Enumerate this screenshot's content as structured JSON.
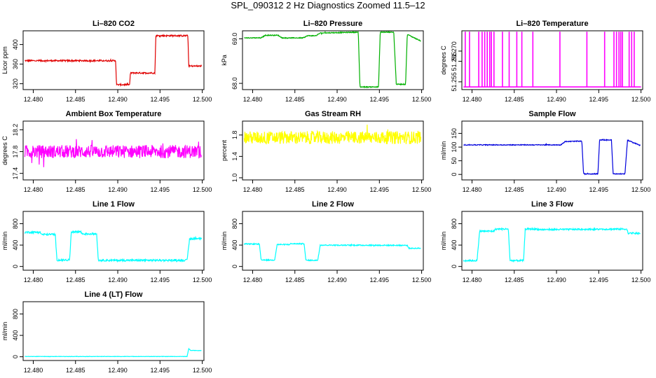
{
  "figure": {
    "title": "SPL_090312  2 Hz Diagnostics Zoomed 11.5–12"
  },
  "chart_data": [
    {
      "type": "line",
      "title": "Li–820 CO2",
      "xlabel": "",
      "ylabel": "Licor ppm",
      "color": "#e00000",
      "xlim": [
        12.4788,
        12.5002
      ],
      "ylim": [
        308,
        428
      ],
      "xticks": [
        "12.480",
        "12.485",
        "12.490",
        "12.495",
        "12.500"
      ],
      "yticks": [
        "320",
        "360",
        "400"
      ],
      "noise": 1.5,
      "series": [
        {
          "x": [
            12.479,
            12.48975,
            12.48985,
            12.4914,
            12.4915,
            12.4944,
            12.4945,
            12.4983,
            12.4984,
            12.4999
          ],
          "y": [
            367,
            367,
            318,
            318,
            342,
            342,
            418,
            418,
            356,
            356
          ]
        }
      ]
    },
    {
      "type": "line",
      "title": "Li–820 Pressure",
      "xlabel": "",
      "ylabel": "kPa",
      "color": "#00b000",
      "xlim": [
        12.4788,
        12.5002
      ],
      "ylim": [
        67.86,
        69.18
      ],
      "xticks": [
        "12.480",
        "12.485",
        "12.490",
        "12.495",
        "12.500"
      ],
      "yticks": [
        "68.0",
        "69.0"
      ],
      "noise": 0.01,
      "series": [
        {
          "x": [
            12.479,
            12.481,
            12.4815,
            12.483,
            12.4835,
            12.486,
            12.4865,
            12.4875,
            12.488,
            12.4925,
            12.4927,
            12.4949,
            12.4951,
            12.4967,
            12.497,
            12.4981,
            12.4983,
            12.4999
          ],
          "y": [
            69.02,
            69.02,
            69.08,
            69.08,
            69.02,
            69.02,
            69.07,
            69.07,
            69.13,
            69.15,
            67.92,
            67.92,
            69.15,
            69.15,
            67.98,
            67.98,
            69.1,
            68.95
          ]
        }
      ]
    },
    {
      "type": "line",
      "title": "Li–820 Temperature",
      "xlabel": "",
      "ylabel": "degrees C",
      "color": "#ff00ff",
      "xlim": [
        12.4788,
        12.5002
      ],
      "ylim": [
        51.2512,
        51.2799
      ],
      "xticks": [
        "12.480",
        "12.485",
        "12.490",
        "12.495",
        "12.500"
      ],
      "yticks": [
        "51.255",
        "51.265",
        "51.270"
      ],
      "base": 51.2525,
      "high": 51.2795,
      "spikes": [
        12.4792,
        12.4797,
        12.4808,
        12.4812,
        12.4815,
        12.4818,
        12.4821,
        12.4823,
        12.4826,
        12.4836,
        12.4844,
        12.4853,
        12.4859,
        12.4872,
        12.4904,
        12.4936,
        12.4957,
        12.4968,
        12.4971,
        12.4974,
        12.4976,
        12.4978,
        12.4986,
        12.4989,
        12.4992
      ]
    },
    {
      "type": "line",
      "title": "Ambient Box Temperature",
      "xlabel": "",
      "ylabel": "degrees C",
      "color": "#ff00ff",
      "xlim": [
        12.4788,
        12.5002
      ],
      "ylim": [
        17.28,
        18.36
      ],
      "xticks": [
        "12.480",
        "12.485",
        "12.490",
        "12.495",
        "12.500"
      ],
      "yticks": [
        "17.4",
        "17.8",
        "18.2"
      ],
      "noise": 0.12,
      "series": [
        {
          "x": [
            12.479,
            12.4999
          ],
          "y": [
            17.8,
            17.8
          ]
        }
      ]
    },
    {
      "type": "line",
      "title": "Gas Stream RH",
      "xlabel": "",
      "ylabel": "percent",
      "color": "#ffff00",
      "xlim": [
        12.4788,
        12.5002
      ],
      "ylim": [
        0.96,
        2.06
      ],
      "xticks": [
        "12.480",
        "12.485",
        "12.490",
        "12.495",
        "12.500"
      ],
      "yticks": [
        "1.0",
        "1.4",
        "1.8"
      ],
      "noise": 0.12,
      "series": [
        {
          "x": [
            12.479,
            12.4999
          ],
          "y": [
            1.75,
            1.75
          ]
        }
      ]
    },
    {
      "type": "line",
      "title": "Sample Flow",
      "xlabel": "",
      "ylabel": "ml/min",
      "color": "#0000dd",
      "xlim": [
        12.4788,
        12.5002
      ],
      "ylim": [
        -20,
        195
      ],
      "xticks": [
        "12.480",
        "12.485",
        "12.490",
        "12.495",
        "12.500"
      ],
      "yticks": [
        "0",
        "50",
        "100",
        "150"
      ],
      "noise": 1.5,
      "series": [
        {
          "x": [
            12.479,
            12.4905,
            12.491,
            12.493,
            12.4932,
            12.4949,
            12.4951,
            12.4965,
            12.4967,
            12.4981,
            12.4984,
            12.4999
          ],
          "y": [
            108,
            108,
            120,
            122,
            2,
            2,
            126,
            126,
            2,
            2,
            125,
            106
          ]
        }
      ]
    },
    {
      "type": "line",
      "title": "Line 1 Flow",
      "xlabel": "",
      "ylabel": "ml/min",
      "color": "#00ffff",
      "xlim": [
        12.4788,
        12.5002
      ],
      "ylim": [
        -70,
        1030
      ],
      "xticks": [
        "12.480",
        "12.485",
        "12.490",
        "12.495",
        "12.500"
      ],
      "yticks": [
        "0",
        "400",
        "800"
      ],
      "noise": 18,
      "series": [
        {
          "x": [
            12.479,
            12.4808,
            12.481,
            12.4826,
            12.4828,
            12.4843,
            12.4845,
            12.4856,
            12.4858,
            12.4875,
            12.4877,
            12.4982,
            12.4985,
            12.4999
          ],
          "y": [
            640,
            640,
            600,
            600,
            120,
            120,
            650,
            650,
            610,
            610,
            115,
            115,
            520,
            520
          ]
        }
      ]
    },
    {
      "type": "line",
      "title": "Line 2 Flow",
      "xlabel": "",
      "ylabel": "ml/min",
      "color": "#00ffff",
      "xlim": [
        12.4788,
        12.5002
      ],
      "ylim": [
        -70,
        1030
      ],
      "xticks": [
        "12.480",
        "12.485",
        "12.490",
        "12.495",
        "12.500"
      ],
      "yticks": [
        "0",
        "400",
        "800"
      ],
      "noise": 10,
      "series": [
        {
          "x": [
            12.479,
            12.4808,
            12.481,
            12.4826,
            12.4829,
            12.4843,
            12.4845,
            12.4861,
            12.4863,
            12.4877,
            12.488,
            12.4983,
            12.4985,
            12.4999
          ],
          "y": [
            420,
            420,
            120,
            120,
            410,
            410,
            425,
            425,
            115,
            115,
            400,
            395,
            340,
            340
          ]
        }
      ]
    },
    {
      "type": "line",
      "title": "Line 3 Flow",
      "xlabel": "",
      "ylabel": "ml/min",
      "color": "#00ffff",
      "xlim": [
        12.4788,
        12.5002
      ],
      "ylim": [
        -70,
        1030
      ],
      "xticks": [
        "12.480",
        "12.485",
        "12.490",
        "12.495",
        "12.500"
      ],
      "yticks": [
        "0",
        "400",
        "800"
      ],
      "noise": 15,
      "series": [
        {
          "x": [
            12.479,
            12.4806,
            12.4809,
            12.4826,
            12.4828,
            12.4843,
            12.4845,
            12.4861,
            12.4863,
            12.4877,
            12.4879,
            12.4983,
            12.4985,
            12.4999
          ],
          "y": [
            110,
            110,
            660,
            660,
            700,
            700,
            110,
            110,
            700,
            700,
            690,
            700,
            620,
            620
          ]
        }
      ]
    },
    {
      "type": "line",
      "title": "Line 4 (LT) Flow",
      "xlabel": "",
      "ylabel": "ml/min",
      "color": "#00ffff",
      "xlim": [
        12.4788,
        12.5002
      ],
      "ylim": [
        -70,
        1030
      ],
      "xticks": [
        "12.480",
        "12.485",
        "12.490",
        "12.495",
        "12.500"
      ],
      "yticks": [
        "0",
        "400",
        "800"
      ],
      "noise": 3,
      "series": [
        {
          "x": [
            12.479,
            12.4982,
            12.4984,
            12.4986,
            12.4999
          ],
          "y": [
            5,
            5,
            150,
            120,
            115
          ]
        }
      ]
    }
  ]
}
